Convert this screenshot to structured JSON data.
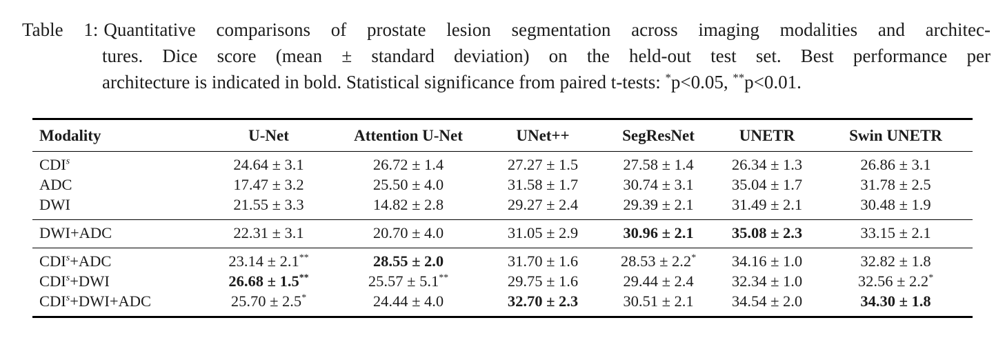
{
  "colors": {
    "background": "#ffffff",
    "text": "#1c1c1c",
    "rule": "#000000"
  },
  "caption": {
    "label": "Table 1:",
    "line1": "Quantitative comparisons of prostate lesion segmentation across imaging modalities and architec-",
    "line2": "tures. Dice score (mean ± standard deviation) on the held-out test set. Best performance per",
    "line3_a": "architecture is indicated in bold. Statistical significance from paired t-tests: ",
    "line3_sup1": "*",
    "line3_b": "p<0.05, ",
    "line3_sup2": "**",
    "line3_c": "p<0.01."
  },
  "table": {
    "columns": [
      "Modality",
      "U-Net",
      "Attention U-Net",
      "UNet++",
      "SegResNet",
      "UNETR",
      "Swin UNETR"
    ],
    "groups": [
      {
        "name": "single-modality",
        "rows": [
          {
            "modality": {
              "pre": "CDI",
              "sup": "s",
              "post": ""
            },
            "cells": [
              {
                "v": "24.64 ± 3.1",
                "m": "",
                "b": false
              },
              {
                "v": "26.72 ± 1.4",
                "m": "",
                "b": false
              },
              {
                "v": "27.27 ± 1.5",
                "m": "",
                "b": false
              },
              {
                "v": "27.58 ± 1.4",
                "m": "",
                "b": false
              },
              {
                "v": "26.34 ± 1.3",
                "m": "",
                "b": false
              },
              {
                "v": "26.86 ± 3.1",
                "m": "",
                "b": false
              }
            ]
          },
          {
            "modality": {
              "pre": "ADC",
              "sup": "",
              "post": ""
            },
            "cells": [
              {
                "v": "17.47 ± 3.2",
                "m": "",
                "b": false
              },
              {
                "v": "25.50 ± 4.0",
                "m": "",
                "b": false
              },
              {
                "v": "31.58 ± 1.7",
                "m": "",
                "b": false
              },
              {
                "v": "30.74 ± 3.1",
                "m": "",
                "b": false
              },
              {
                "v": "35.04 ± 1.7",
                "m": "",
                "b": false
              },
              {
                "v": "31.78 ± 2.5",
                "m": "",
                "b": false
              }
            ]
          },
          {
            "modality": {
              "pre": "DWI",
              "sup": "",
              "post": ""
            },
            "cells": [
              {
                "v": "21.55 ± 3.3",
                "m": "",
                "b": false
              },
              {
                "v": "14.82 ± 2.8",
                "m": "",
                "b": false
              },
              {
                "v": "29.27 ± 2.4",
                "m": "",
                "b": false
              },
              {
                "v": "29.39 ± 2.1",
                "m": "",
                "b": false
              },
              {
                "v": "31.49 ± 2.1",
                "m": "",
                "b": false
              },
              {
                "v": "30.48 ± 1.9",
                "m": "",
                "b": false
              }
            ]
          }
        ]
      },
      {
        "name": "dual-modality",
        "rows": [
          {
            "modality": {
              "pre": "DWI+ADC",
              "sup": "",
              "post": ""
            },
            "cells": [
              {
                "v": "22.31 ± 3.1",
                "m": "",
                "b": false
              },
              {
                "v": "20.70 ± 4.0",
                "m": "",
                "b": false
              },
              {
                "v": "31.05 ± 2.9",
                "m": "",
                "b": false
              },
              {
                "v": "30.96 ± 2.1",
                "m": "",
                "b": true
              },
              {
                "v": "35.08 ± 2.3",
                "m": "",
                "b": true
              },
              {
                "v": "33.15 ± 2.1",
                "m": "",
                "b": false
              }
            ]
          }
        ]
      },
      {
        "name": "cdi-combinations",
        "rows": [
          {
            "modality": {
              "pre": "CDI",
              "sup": "s",
              "post": "+ADC"
            },
            "cells": [
              {
                "v": "23.14 ± 2.1",
                "m": "**",
                "b": false
              },
              {
                "v": "28.55 ± 2.0",
                "m": "",
                "b": true
              },
              {
                "v": "31.70 ± 1.6",
                "m": "",
                "b": false
              },
              {
                "v": "28.53 ± 2.2",
                "m": "*",
                "b": false
              },
              {
                "v": "34.16 ± 1.0",
                "m": "",
                "b": false
              },
              {
                "v": "32.82 ± 1.8",
                "m": "",
                "b": false
              }
            ]
          },
          {
            "modality": {
              "pre": "CDI",
              "sup": "s",
              "post": "+DWI"
            },
            "cells": [
              {
                "v": "26.68 ± 1.5",
                "m": "**",
                "b": true
              },
              {
                "v": "25.57 ± 5.1",
                "m": "**",
                "b": false
              },
              {
                "v": "29.75 ± 1.6",
                "m": "",
                "b": false
              },
              {
                "v": "29.44 ± 2.4",
                "m": "",
                "b": false
              },
              {
                "v": "32.34 ± 1.0",
                "m": "",
                "b": false
              },
              {
                "v": "32.56 ± 2.2",
                "m": "*",
                "b": false
              }
            ]
          },
          {
            "modality": {
              "pre": "CDI",
              "sup": "s",
              "post": "+DWI+ADC"
            },
            "cells": [
              {
                "v": "25.70 ± 2.5",
                "m": "*",
                "b": false
              },
              {
                "v": "24.44 ± 4.0",
                "m": "",
                "b": false
              },
              {
                "v": "32.70 ± 2.3",
                "m": "",
                "b": true
              },
              {
                "v": "30.51 ± 2.1",
                "m": "",
                "b": false
              },
              {
                "v": "34.54 ± 2.0",
                "m": "",
                "b": false
              },
              {
                "v": "34.30 ± 1.8",
                "m": "",
                "b": true
              }
            ]
          }
        ]
      }
    ]
  }
}
